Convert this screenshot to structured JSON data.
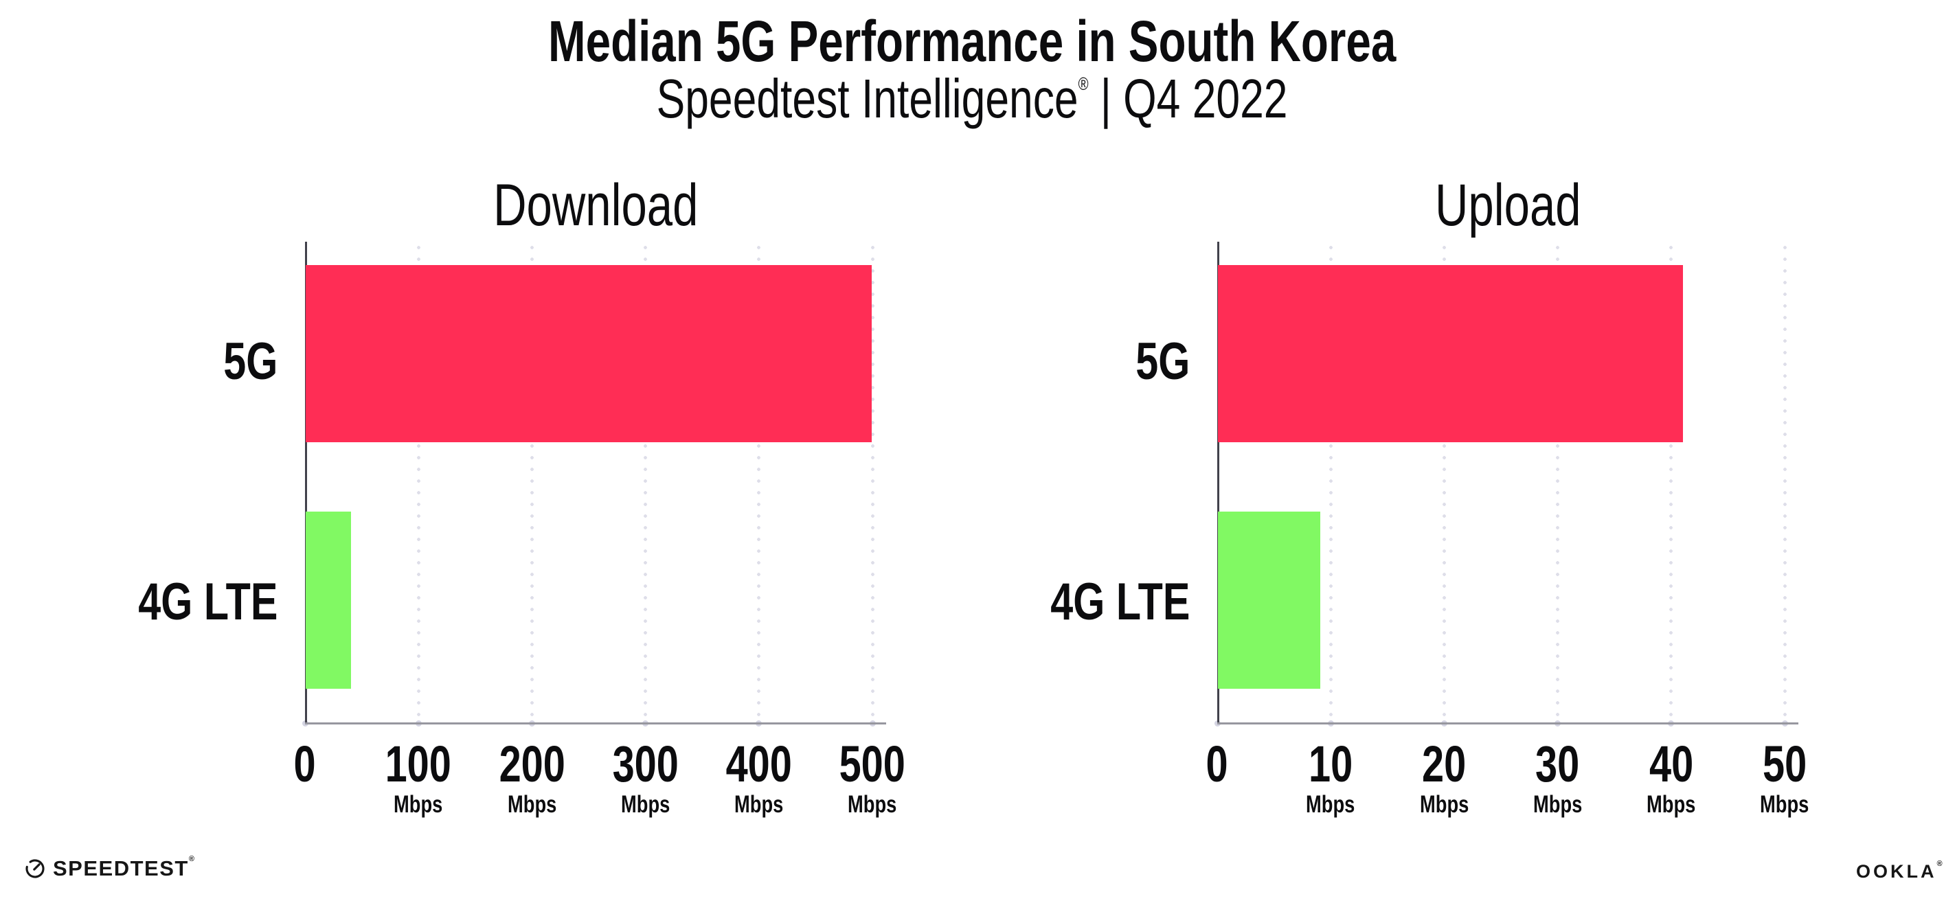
{
  "header": {
    "title": "Median 5G Performance in South Korea",
    "subtitle": {
      "product": "Speedtest Intelligence",
      "registered_mark": "®",
      "separator": "|",
      "period": "Q4 2022"
    }
  },
  "chart_data": [
    {
      "type": "bar",
      "orientation": "horizontal",
      "title": "Download",
      "categories": [
        "5G",
        "4G LTE"
      ],
      "values": [
        499,
        40
      ],
      "value_unit": "Mbps",
      "xlim": [
        0,
        500
      ],
      "xticks": [
        0,
        100,
        200,
        300,
        400,
        500
      ],
      "xtick_unit": "Mbps",
      "bar_colors": [
        "#ff2d55",
        "#81f963"
      ],
      "grid": "vertical-dotted",
      "legend": "none"
    },
    {
      "type": "bar",
      "orientation": "horizontal",
      "title": "Upload",
      "categories": [
        "5G",
        "4G LTE"
      ],
      "values": [
        41,
        9
      ],
      "value_unit": "Mbps",
      "xlim": [
        0,
        50
      ],
      "xticks": [
        0,
        10,
        20,
        30,
        40,
        50
      ],
      "xtick_unit": "Mbps",
      "bar_colors": [
        "#ff2d55",
        "#81f963"
      ],
      "grid": "vertical-dotted",
      "legend": "none"
    }
  ],
  "footer": {
    "speedtest_logo_text": "SPEEDTEST",
    "speedtest_trademark": "®",
    "ookla_logo_text": "OOKLA",
    "ookla_trademark": "®"
  },
  "colors": {
    "bar_5g": "#ff2d55",
    "bar_4g_lte": "#81f963",
    "grid_dots": "#dedee9",
    "y_axis": "#42424c",
    "x_axis": "#97979f",
    "text": "#0c0c0e",
    "background": "#ffffff"
  }
}
